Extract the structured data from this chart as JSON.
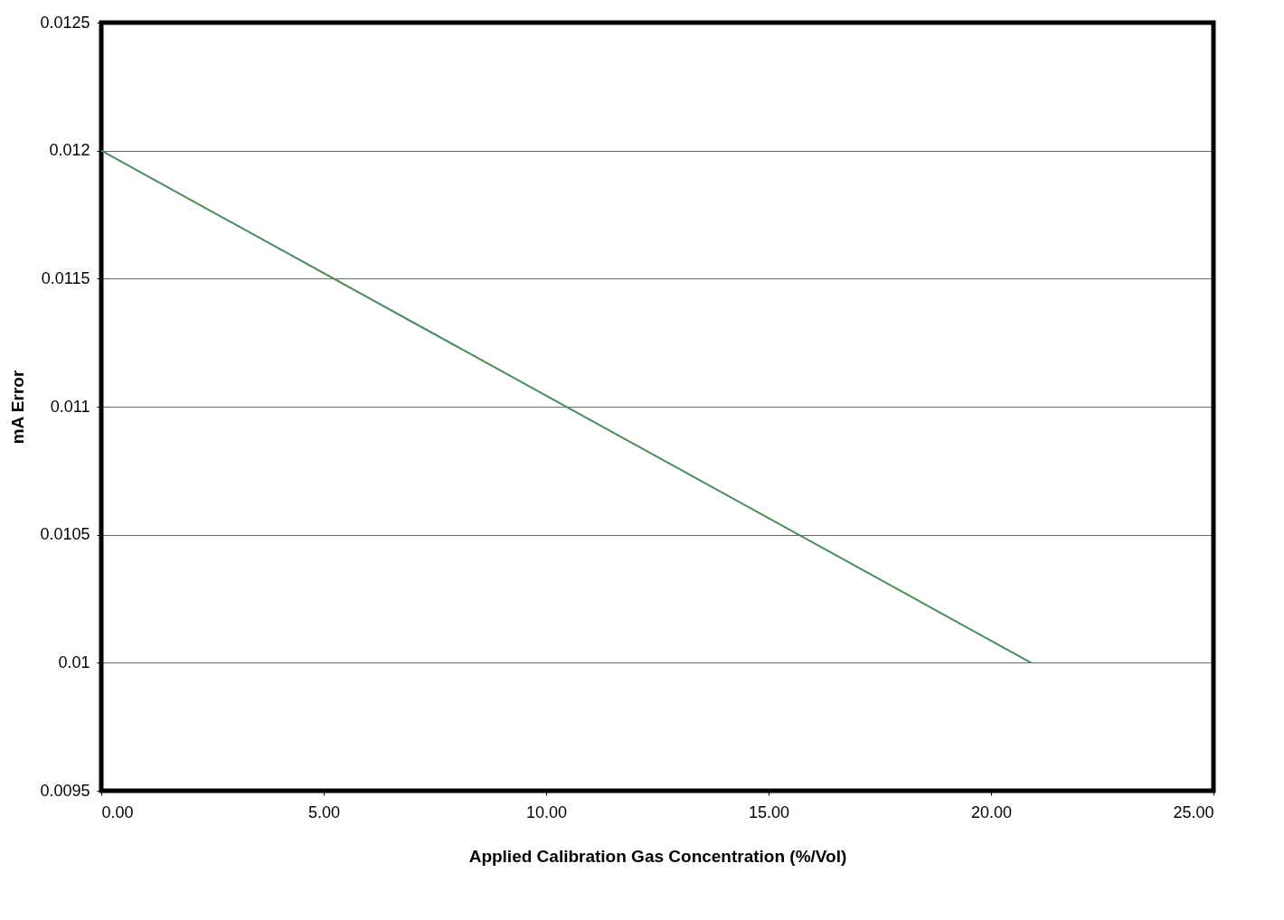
{
  "chart_data": {
    "type": "line",
    "xlabel": "Applied Calibration Gas Concentration (%/Vol)",
    "ylabel": "mA Error",
    "x": [
      0,
      20.9
    ],
    "series": [
      {
        "color": "#4a8c5c",
        "values": [
          0.012,
          0.01
        ]
      }
    ],
    "xlim": [
      0,
      25
    ],
    "xticks": [
      {
        "value": 0,
        "label": "0.00"
      },
      {
        "value": 5,
        "label": "5.00"
      },
      {
        "value": 10,
        "label": "10.00"
      },
      {
        "value": 15,
        "label": "15.00"
      },
      {
        "value": 20,
        "label": "20.00"
      },
      {
        "value": 25,
        "label": "25.00"
      }
    ],
    "ylim": [
      0.0095,
      0.0125
    ],
    "yticks": [
      0.0095,
      0.01,
      0.0105,
      0.011,
      0.0115,
      0.012,
      0.0125
    ],
    "grid": "y",
    "marker": "none",
    "line_style": "solid"
  }
}
